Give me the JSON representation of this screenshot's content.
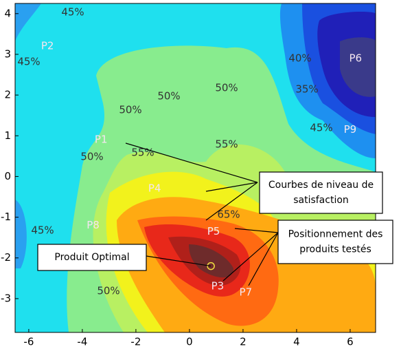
{
  "chart_data": {
    "type": "contour",
    "xlim": [
      -6.51,
      6.95
    ],
    "ylim": [
      -3.83,
      4.25
    ],
    "xticks": [
      -6,
      -4,
      -2,
      0,
      2,
      4,
      6
    ],
    "yticks": [
      -3,
      -2,
      -1,
      0,
      1,
      2,
      3,
      4
    ],
    "colormap": [
      "#1fe0ee",
      "#88ec8e",
      "#b8f062",
      "#f2f21c",
      "#ffaa12",
      "#ff6a12",
      "#e8281a",
      "#b0201a",
      "#6e2b2b",
      "#1e90f0",
      "#1a50e0",
      "#2020b8",
      "#3a3a8a",
      "#2aa0f0"
    ],
    "contour_labels": [
      "45%",
      "45%",
      "50%",
      "50%",
      "50%",
      "55%",
      "55%",
      "50%",
      "45%",
      "65%",
      "50%",
      "40%",
      "35%",
      "45%"
    ],
    "points": [
      {
        "label": "P1",
        "x": -3.3,
        "y": 0.9
      },
      {
        "label": "P2",
        "x": -5.3,
        "y": 3.2
      },
      {
        "label": "P3",
        "x": 1.05,
        "y": -2.7
      },
      {
        "label": "P4",
        "x": -1.3,
        "y": -0.3
      },
      {
        "label": "P5",
        "x": 0.9,
        "y": -1.35
      },
      {
        "label": "P6",
        "x": 6.2,
        "y": 2.9
      },
      {
        "label": "P7",
        "x": 2.1,
        "y": -2.85
      },
      {
        "label": "P8",
        "x": -3.6,
        "y": -1.2
      },
      {
        "label": "P9",
        "x": 6.0,
        "y": 1.15
      }
    ],
    "optimum": {
      "x": 0.8,
      "y": -2.2,
      "color": "#f0e040"
    },
    "annotations": [
      {
        "lines": [
          "Courbes de niveau de",
          "satisfaction"
        ]
      },
      {
        "lines": [
          "Positionnement des",
          "produits testés"
        ]
      },
      {
        "lines": [
          "Produit Optimal"
        ]
      }
    ]
  }
}
